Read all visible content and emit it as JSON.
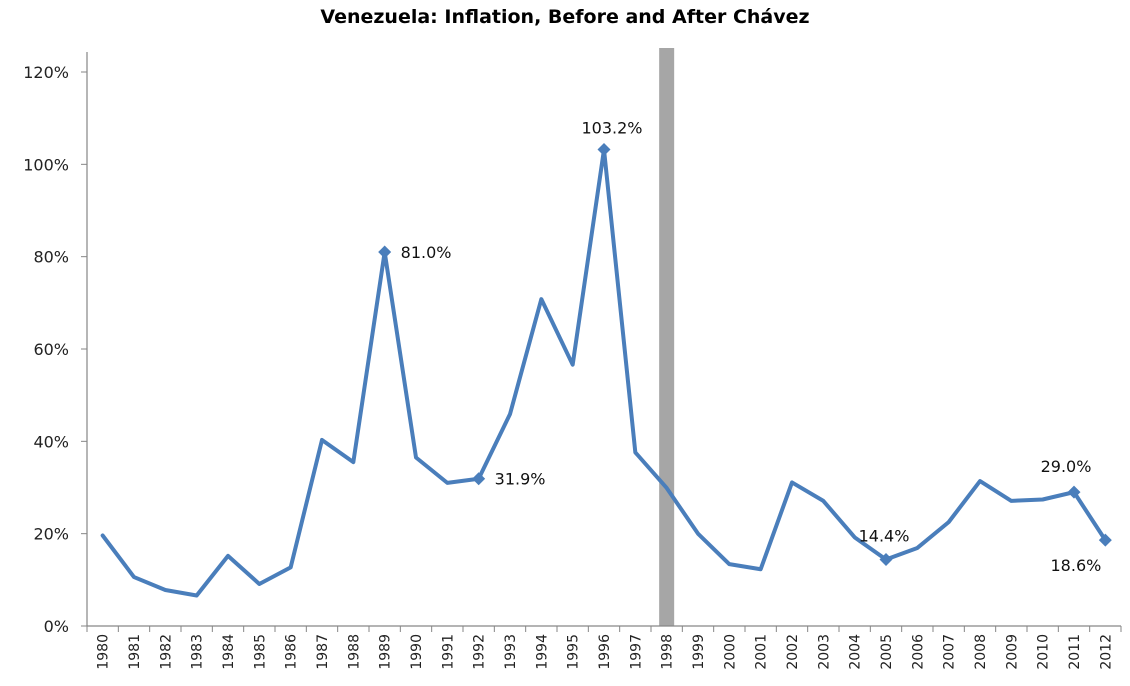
{
  "chart_data": {
    "type": "line",
    "title": "Venezuela: Inflation,  Before and After Chávez",
    "xlabel": "",
    "ylabel": "",
    "ylim": [
      0,
      120
    ],
    "y_ticks": [
      "0%",
      "20%",
      "40%",
      "60%",
      "80%",
      "100%",
      "120%"
    ],
    "grid": false,
    "legend": "none",
    "categories": [
      "1980",
      "1981",
      "1982",
      "1983",
      "1984",
      "1985",
      "1986",
      "1987",
      "1988",
      "1989",
      "1990",
      "1991",
      "1992",
      "1993",
      "1994",
      "1995",
      "1996",
      "1997",
      "1998",
      "1999",
      "2000",
      "2001",
      "2002",
      "2003",
      "2004",
      "2005",
      "2006",
      "2007",
      "2008",
      "2009",
      "2010",
      "2011",
      "2012"
    ],
    "series": [
      {
        "values": [
          19.6,
          10.6,
          7.8,
          6.6,
          15.2,
          9.1,
          12.7,
          40.3,
          35.5,
          81.0,
          36.5,
          31.0,
          31.9,
          45.9,
          70.8,
          56.6,
          103.2,
          37.6,
          29.9,
          20.0,
          13.4,
          12.3,
          31.1,
          27.1,
          19.2,
          14.4,
          16.9,
          22.5,
          31.4,
          27.1,
          27.4,
          29.0,
          18.6
        ]
      }
    ],
    "annotations": [
      {
        "category": "1989",
        "text": "81.0%"
      },
      {
        "category": "1992",
        "text": "31.9%"
      },
      {
        "category": "1996",
        "text": "103.2%"
      },
      {
        "category": "2005",
        "text": "14.4%"
      },
      {
        "category": "2011",
        "text": "29.0%"
      },
      {
        "category": "2012",
        "text": "18.6%"
      }
    ],
    "marker_at": "1998",
    "colors": {
      "line": "#4a7ebb",
      "marker_bar": "#a6a6a6",
      "axis": "#868686"
    }
  }
}
